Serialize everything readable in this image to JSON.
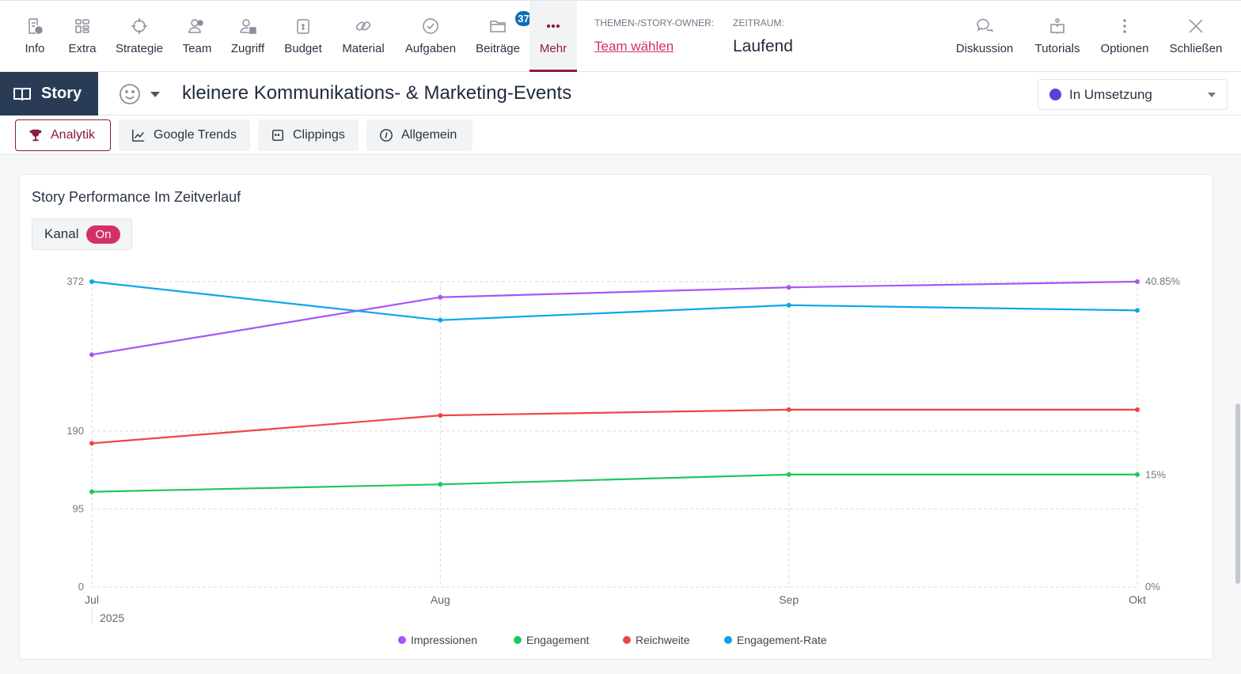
{
  "nav": [
    {
      "label": "Info",
      "icon": "info-doc-icon"
    },
    {
      "label": "Extra",
      "icon": "grid-icon"
    },
    {
      "label": "Strategie",
      "icon": "crosshair-icon"
    },
    {
      "label": "Team",
      "icon": "team-icon"
    },
    {
      "label": "Zugriff",
      "icon": "user-lock-icon"
    },
    {
      "label": "Budget",
      "icon": "budget-icon"
    },
    {
      "label": "Material",
      "icon": "link-icon"
    },
    {
      "label": "Aufgaben",
      "icon": "check-circle-icon"
    },
    {
      "label": "Beiträge",
      "icon": "folder-icon",
      "badge": "37"
    },
    {
      "label": "Mehr",
      "icon": "more-icon"
    }
  ],
  "owner": {
    "label": "THEMEN-/STORY-OWNER:",
    "value": "Team wählen"
  },
  "period": {
    "label": "ZEITRAUM:",
    "value": "Laufend"
  },
  "actions": [
    {
      "label": "Diskussion"
    },
    {
      "label": "Tutorials"
    },
    {
      "label": "Optionen"
    },
    {
      "label": "Schließen"
    }
  ],
  "story": {
    "label": "Story",
    "title": "kleinere Kommunikations- & Marketing-Events",
    "status": "In Umsetzung",
    "status_color": "#5b3fd9"
  },
  "tabs": [
    {
      "label": "Analytik"
    },
    {
      "label": "Google Trends"
    },
    {
      "label": "Clippings"
    },
    {
      "label": "Allgemein"
    }
  ],
  "card": {
    "title": "Story Performance Im Zeitverlauf",
    "toggle_label": "Kanal",
    "toggle_value": "On"
  },
  "chart_data": {
    "type": "line",
    "categories": [
      "Jul",
      "Aug",
      "Sep",
      "Okt"
    ],
    "year_label": "2025",
    "y_left": {
      "ticks": [
        "0",
        "95",
        "190",
        "372"
      ],
      "tick_values": [
        0,
        95,
        190,
        372
      ],
      "range": [
        0,
        372
      ]
    },
    "y_right": {
      "ticks": [
        "0%",
        "15%",
        "40.85%"
      ],
      "tick_values": [
        0,
        15,
        40.85
      ],
      "range": [
        0,
        40.85
      ]
    },
    "series": [
      {
        "name": "Impressionen",
        "color": "#a855f7",
        "axis": "left",
        "values": [
          283,
          353,
          365,
          372
        ]
      },
      {
        "name": "Engagement",
        "color": "#22c55e",
        "axis": "left",
        "values": [
          116,
          125,
          137,
          137
        ]
      },
      {
        "name": "Reichweite",
        "color": "#ef4444",
        "axis": "left",
        "values": [
          175,
          209,
          216,
          216
        ]
      },
      {
        "name": "Engagement-Rate",
        "color": "#0ea5e9",
        "axis": "right",
        "values": [
          40.85,
          35.7,
          37.7,
          37.0
        ]
      }
    ],
    "legend": "bottom-center",
    "grid": true
  }
}
